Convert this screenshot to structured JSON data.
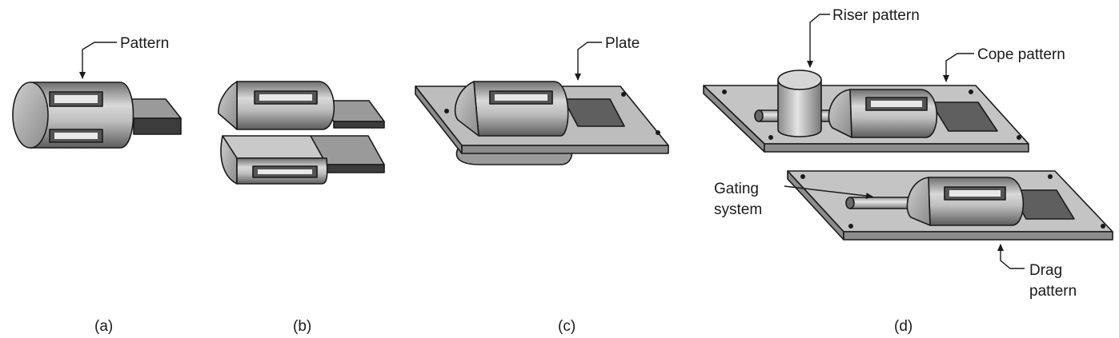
{
  "labels": {
    "pattern": "Pattern",
    "plate": "Plate",
    "riser_pattern": "Riser pattern",
    "cope_pattern": "Cope pattern",
    "gating_line1": "Gating",
    "gating_line2": "system",
    "drag_line1": "Drag",
    "drag_line2": "pattern"
  },
  "captions": {
    "a": "(a)",
    "b": "(b)",
    "c": "(c)",
    "d": "(d)"
  }
}
